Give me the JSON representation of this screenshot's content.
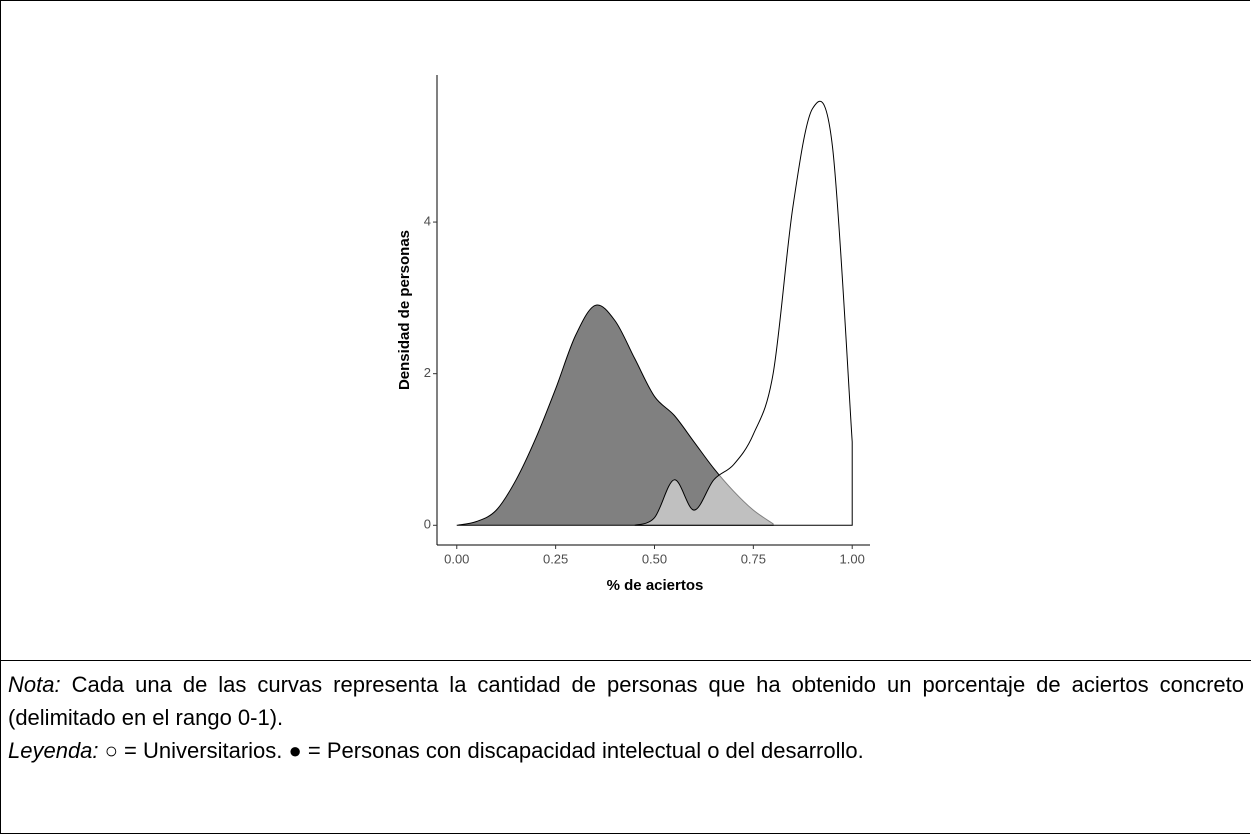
{
  "chart_data": {
    "type": "density",
    "xlabel": "% de aciertos",
    "ylabel": "Densidad de personas",
    "x": [
      0,
      0.05,
      0.1,
      0.15,
      0.2,
      0.25,
      0.3,
      0.35,
      0.4,
      0.45,
      0.5,
      0.55,
      0.6,
      0.65,
      0.7,
      0.75,
      0.8,
      0.85,
      0.9,
      0.95,
      1.0
    ],
    "series": [
      {
        "color": "#808080",
        "alpha": 1,
        "values": [
          0,
          0.05,
          0.2,
          0.6,
          1.15,
          1.8,
          2.5,
          2.9,
          2.7,
          2.2,
          1.7,
          1.45,
          1.1,
          0.75,
          0.45,
          0.2,
          0.02,
          null,
          null,
          null,
          null
        ]
      },
      {
        "color": "#ffffff",
        "alpha": 0.5,
        "values": [
          null,
          null,
          null,
          null,
          null,
          null,
          null,
          null,
          null,
          0,
          0.1,
          0.6,
          0.2,
          0.6,
          0.8,
          1.2,
          2.0,
          4.2,
          5.5,
          5.0,
          1.1
        ]
      }
    ],
    "xlim": [
      -0.05,
      1.045
    ],
    "ylim": [
      -0.26,
      5.94
    ],
    "xticks": [
      {
        "value": 0,
        "label": "0.00"
      },
      {
        "value": 0.25,
        "label": "0.25"
      },
      {
        "value": 0.5,
        "label": "0.50"
      },
      {
        "value": 0.75,
        "label": "0.75"
      },
      {
        "value": 1,
        "label": "1.00"
      }
    ],
    "yticks": [
      0,
      2,
      4
    ],
    "grid": false
  },
  "note": {
    "label": "Nota:",
    "text": "Cada una de las curvas representa la cantidad de personas que ha obtenido un porcentaje de aciertos concreto (delimitado en el rango 0-1)."
  },
  "legend": {
    "label": "Leyenda:",
    "text": "○ = Universitarios. ● = Personas con discapacidad intelectual o del desarrollo."
  }
}
